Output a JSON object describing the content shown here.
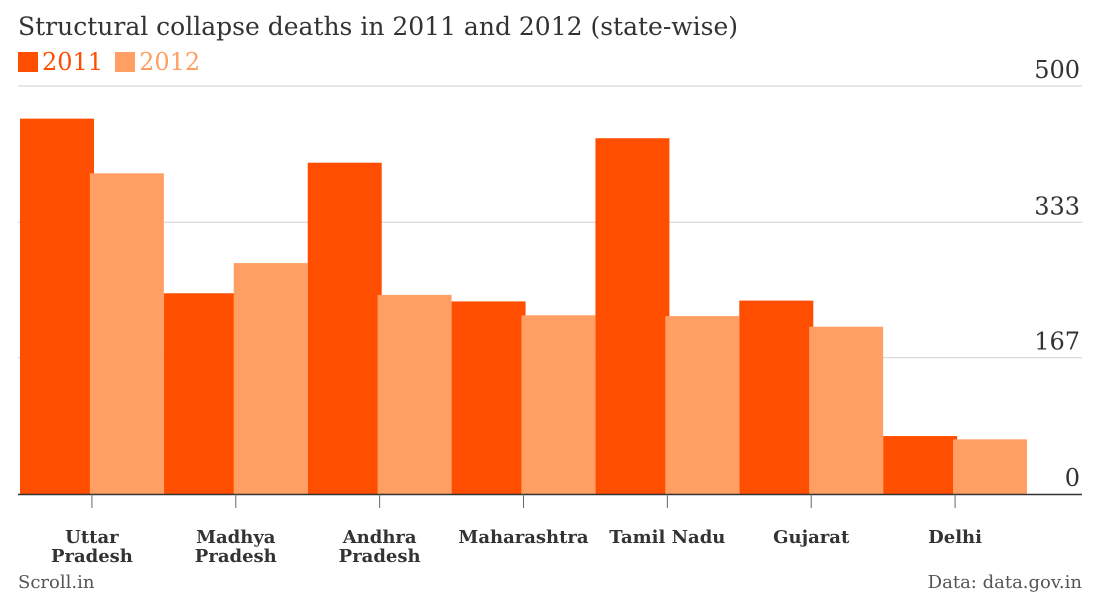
{
  "chart_data": {
    "type": "bar",
    "title": "Structural collapse deaths in 2011 and 2012 (state-wise)",
    "categories": [
      [
        "Uttar",
        "Pradesh"
      ],
      [
        "Madhya",
        "Pradesh"
      ],
      [
        "Andhra",
        "Pradesh"
      ],
      [
        "Maharashtra"
      ],
      [
        "Tamil Nadu"
      ],
      [
        "Gujarat"
      ],
      [
        "Delhi"
      ]
    ],
    "series": [
      {
        "name": "2011",
        "color": "#FF4E00",
        "values": [
          460,
          246,
          406,
          236,
          436,
          237,
          71
        ]
      },
      {
        "name": "2012",
        "color": "#FF9F63",
        "values": [
          393,
          283,
          244,
          219,
          218,
          205,
          67
        ]
      }
    ],
    "yticks": [
      0,
      167,
      333,
      500
    ],
    "ylim": [
      0,
      500
    ],
    "axis_position": "right",
    "grid": true,
    "legend_position": "top-left"
  },
  "footer": {
    "source_left": "Scroll.in",
    "source_right": "Data: data.gov.in"
  }
}
